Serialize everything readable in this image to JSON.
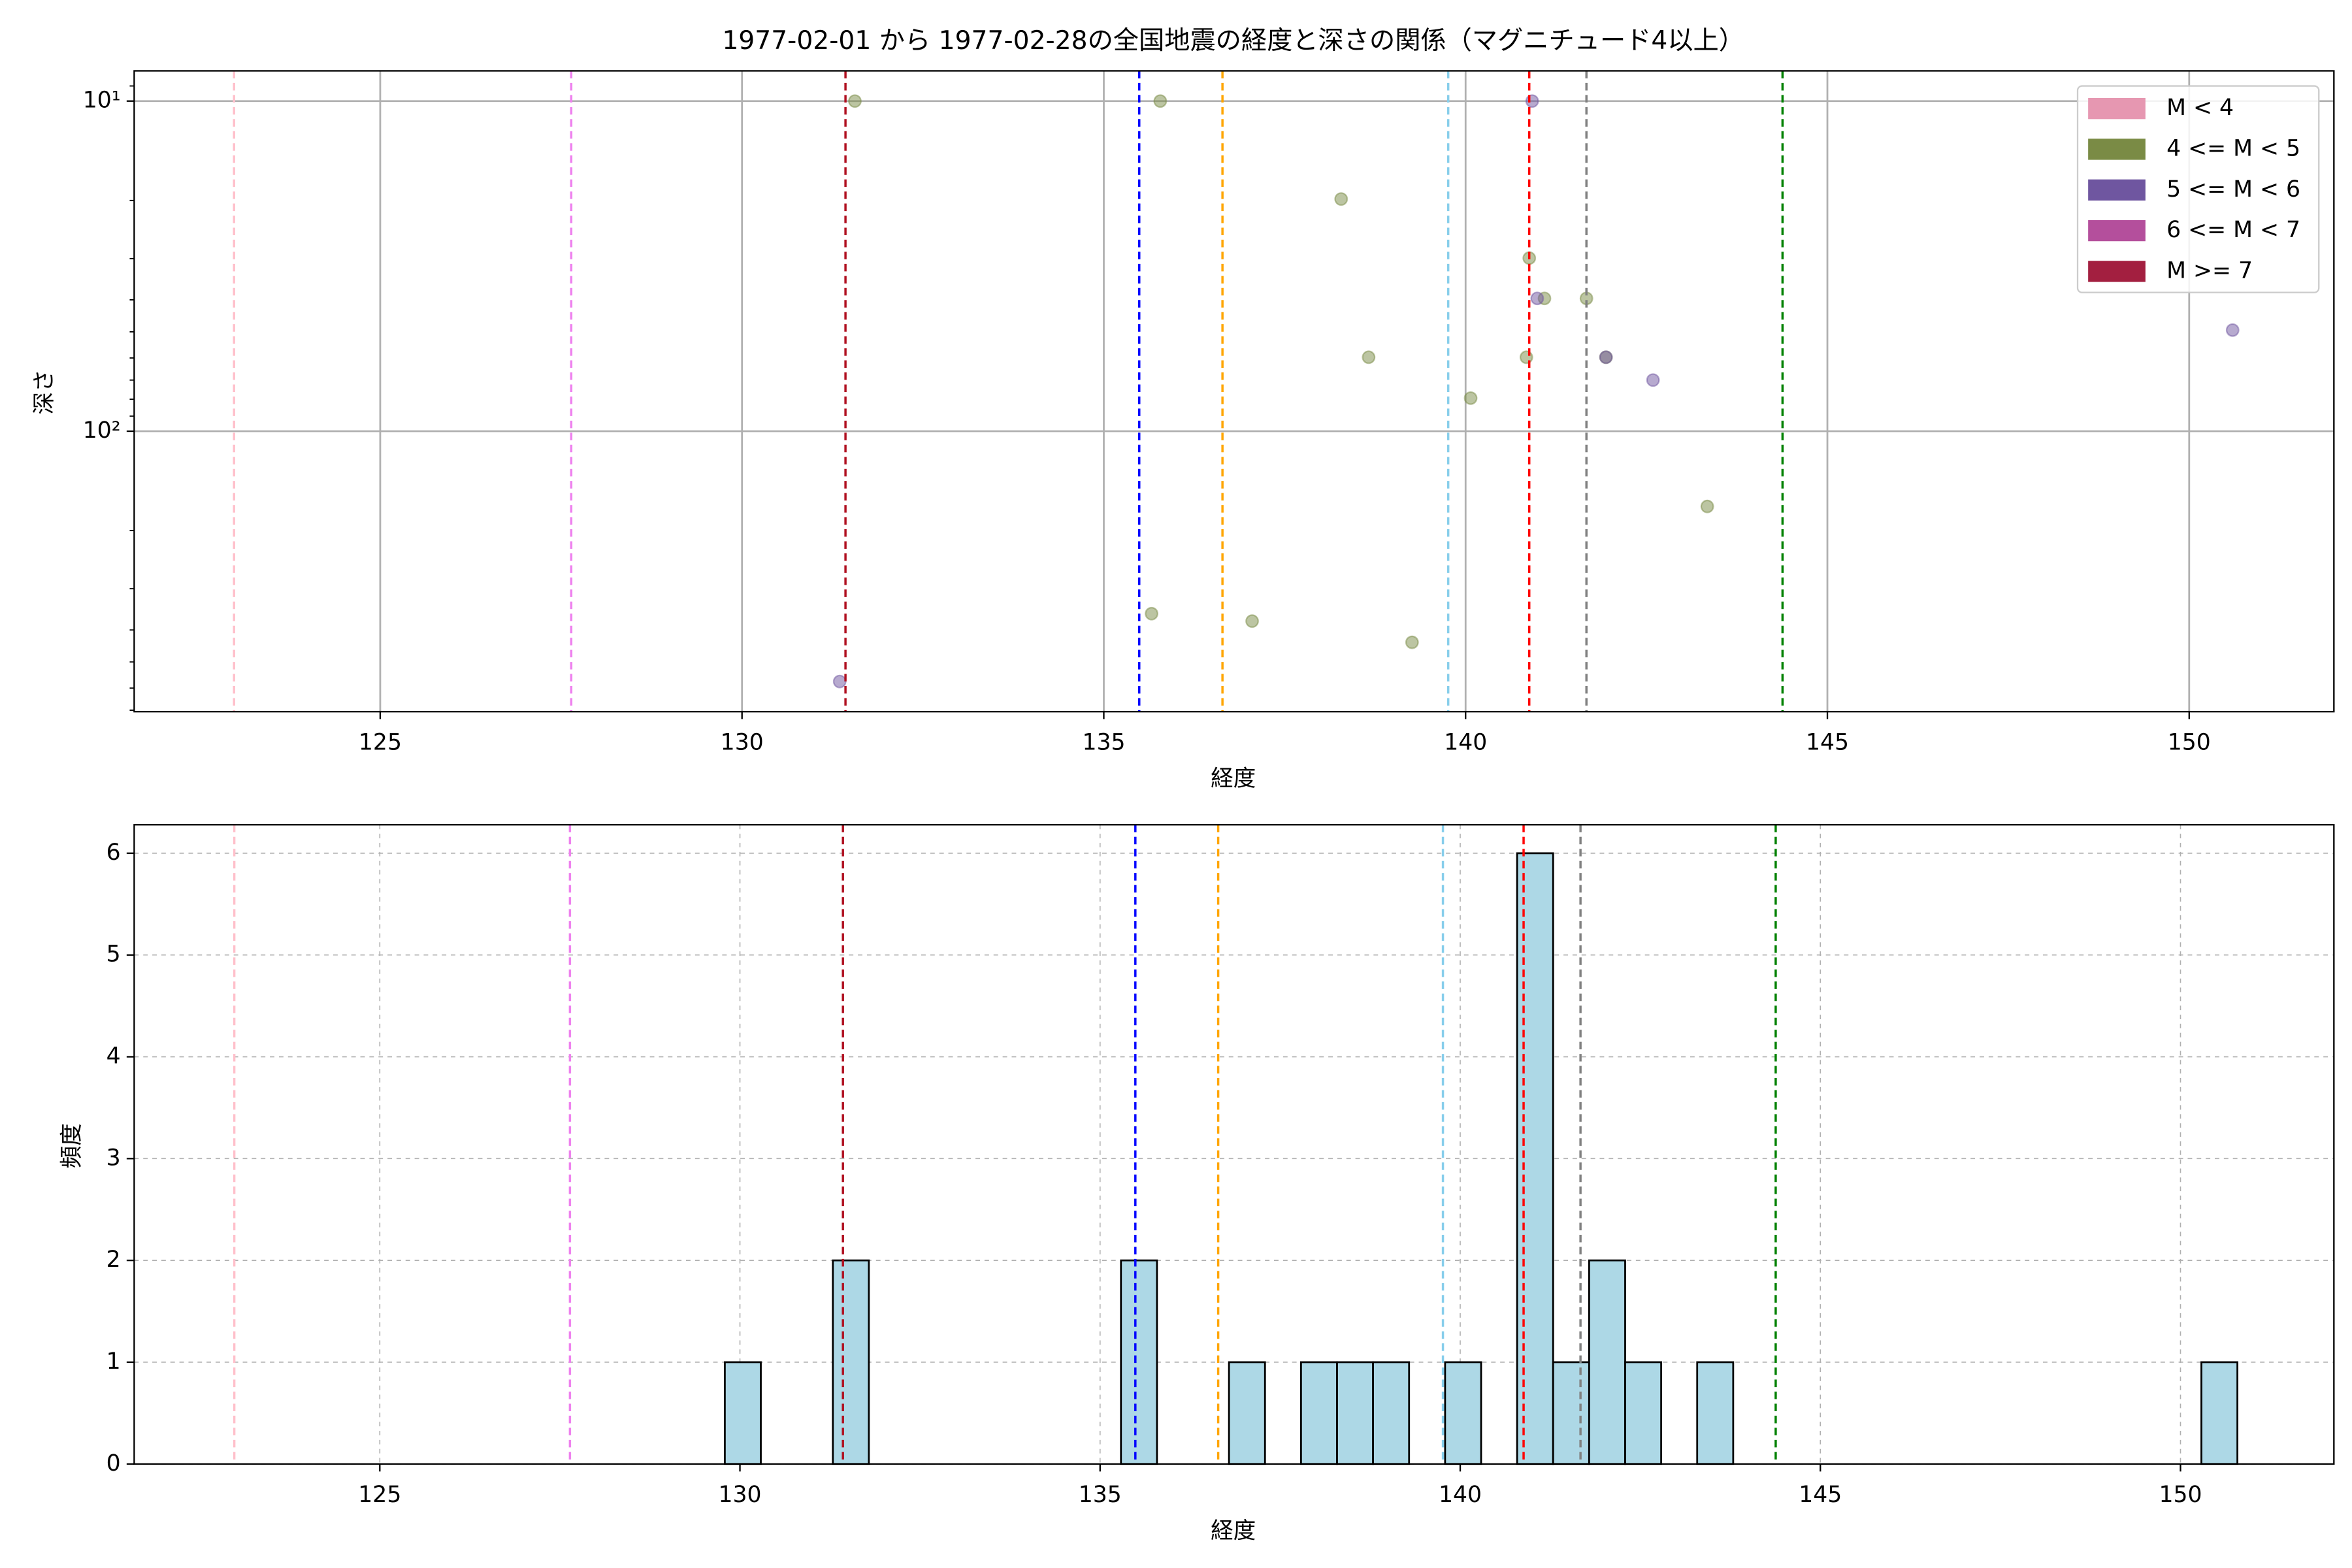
{
  "chart_data": [
    {
      "type": "scatter",
      "title": "1977-02-01 から 1977-02-28の全国地震の経度と深さの関係（マグニチュード4以上）",
      "xlabel": "経度",
      "ylabel": "深さ",
      "xlim": [
        121.6,
        152.0
      ],
      "xticks": [
        125,
        130,
        135,
        140,
        145,
        150
      ],
      "ylim": [
        8.1,
        707
      ],
      "y_inverted": true,
      "log_y": true,
      "yticks": [
        {
          "value": 10,
          "label": "10¹"
        },
        {
          "value": 100,
          "label": "10²"
        }
      ],
      "yminorticks": [
        9,
        20,
        30,
        40,
        50,
        60,
        70,
        80,
        90,
        200,
        300,
        400,
        500,
        600,
        700
      ],
      "grid": true,
      "legend": "upper right",
      "alpha": 0.5,
      "series": [
        {
          "name": "M < 4",
          "color": "#e697b1",
          "x": [],
          "values": []
        },
        {
          "name": "4 <= M < 5",
          "color": "#7a8b45",
          "x": [
            131.56,
            135.78,
            138.28,
            140.88,
            141.09,
            141.67,
            138.66,
            140.84,
            141.94,
            140.07,
            143.34,
            135.66,
            137.05,
            139.26
          ],
          "values": [
            10,
            10,
            19.8,
            29.9,
            39.6,
            39.6,
            59.7,
            59.7,
            59.7,
            79.4,
            169,
            357,
            376,
            436
          ]
        },
        {
          "name": "5 <= M < 6",
          "color": "#6f56a0",
          "x": [
            140.92,
            140.99,
            141.94,
            142.59,
            150.6,
            131.35
          ],
          "values": [
            10,
            39.6,
            59.7,
            70.0,
            49.4,
            573
          ]
        },
        {
          "name": "6 <= M < 7",
          "color": "#b44f9c",
          "x": [],
          "values": []
        },
        {
          "name": "M >= 7",
          "color": "#a31f40",
          "x": [],
          "values": []
        }
      ],
      "vlines": [
        {
          "x": 122.98,
          "color": "pink"
        },
        {
          "x": 127.64,
          "color": "violet"
        },
        {
          "x": 131.43,
          "color": "#b01020"
        },
        {
          "x": 135.49,
          "color": "blue"
        },
        {
          "x": 136.64,
          "color": "orange"
        },
        {
          "x": 139.76,
          "color": "skyblue"
        },
        {
          "x": 140.88,
          "color": "red"
        },
        {
          "x": 141.67,
          "color": "gray"
        },
        {
          "x": 144.38,
          "color": "green"
        }
      ]
    },
    {
      "type": "histogram",
      "xlabel": "経度",
      "ylabel": "頻度",
      "xlim": [
        121.59,
        152.13
      ],
      "xticks": [
        125,
        130,
        135,
        140,
        145,
        150
      ],
      "ylim": [
        0,
        6.28
      ],
      "yticks": [
        0,
        1,
        2,
        3,
        4,
        5,
        6
      ],
      "grid": "dashed",
      "color": "lightblue",
      "edgecolor": "#000000",
      "bins": [
        129.79,
        130.29,
        130.79,
        131.29,
        131.79,
        132.29,
        132.79,
        133.29,
        133.79,
        134.29,
        134.79,
        135.29,
        135.79,
        136.29,
        136.79,
        137.29,
        137.79,
        138.29,
        138.79,
        139.29,
        139.79,
        140.29,
        140.79,
        141.29,
        141.79,
        142.29,
        142.79,
        143.29,
        143.79,
        144.29,
        144.79,
        145.29,
        145.79,
        146.29,
        146.79,
        147.29,
        147.79,
        148.29,
        148.79,
        149.29,
        149.79,
        150.29,
        150.79
      ],
      "values": [
        1,
        0,
        0,
        2,
        0,
        0,
        0,
        0,
        0,
        0,
        0,
        2,
        0,
        0,
        1,
        0,
        1,
        1,
        1,
        0,
        1,
        0,
        6,
        1,
        2,
        1,
        0,
        1,
        0,
        0,
        0,
        0,
        0,
        0,
        0,
        0,
        0,
        0,
        0,
        0,
        0,
        1
      ],
      "vlines": [
        {
          "x": 122.98,
          "color": "pink"
        },
        {
          "x": 127.64,
          "color": "violet"
        },
        {
          "x": 131.43,
          "color": "#b01020"
        },
        {
          "x": 135.49,
          "color": "blue"
        },
        {
          "x": 136.64,
          "color": "orange"
        },
        {
          "x": 139.76,
          "color": "skyblue"
        },
        {
          "x": 140.88,
          "color": "red"
        },
        {
          "x": 141.67,
          "color": "gray"
        },
        {
          "x": 144.38,
          "color": "green"
        }
      ]
    }
  ]
}
